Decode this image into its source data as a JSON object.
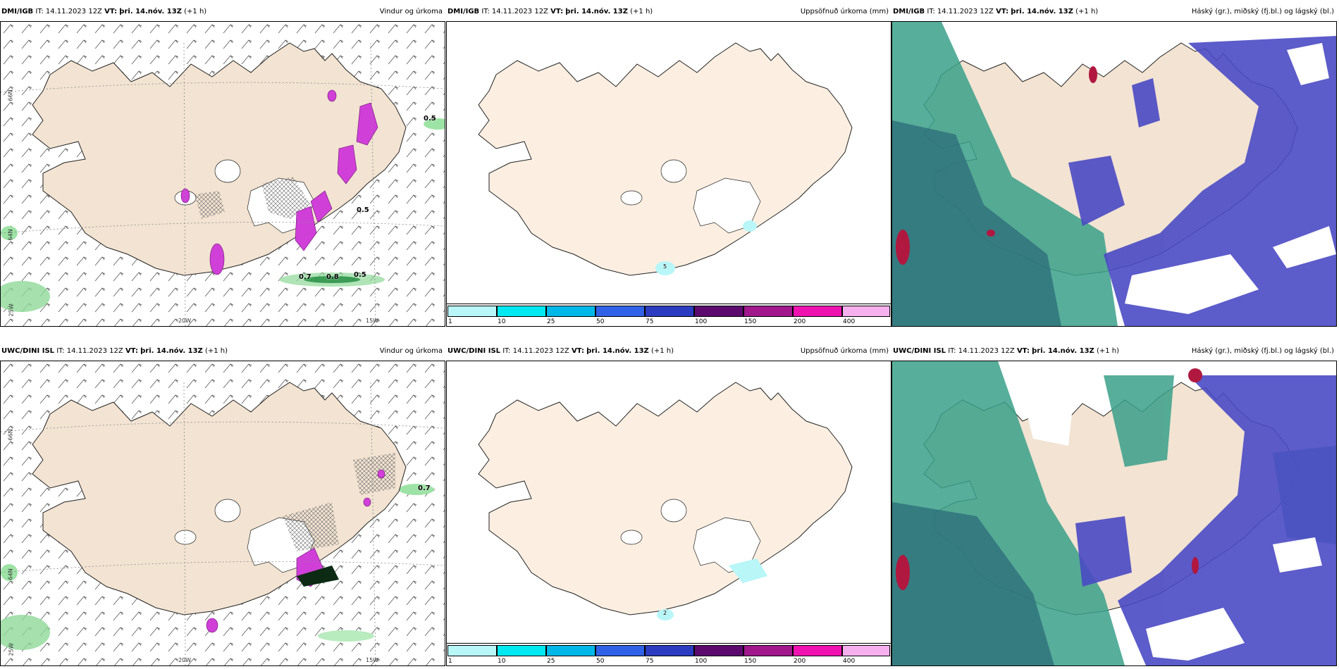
{
  "panels": [
    {
      "model": "DMI/IGB",
      "it_label": "IT:",
      "it": "14.11.2023 12Z",
      "vt_label": "VT:",
      "vt": "þri. 14.nóv. 13Z",
      "lead": "(+1 h)",
      "product": "Vindur og úrkoma"
    },
    {
      "model": "DMI/IGB",
      "it_label": "IT:",
      "it": "14.11.2023 12Z",
      "vt_label": "VT:",
      "vt": "þri. 14.nóv. 13Z",
      "lead": "(+1 h)",
      "product": "Uppsöfnuð úrkoma (mm)"
    },
    {
      "model": "DMI/IGB",
      "it_label": "IT:",
      "it": "14.11.2023 12Z",
      "vt_label": "VT:",
      "vt": "þri. 14.nóv. 13Z",
      "lead": "(+1 h)",
      "product": "Háský (gr.), miðský (fj.bl.) og lágský (bl.)"
    },
    {
      "model": "UWC/DINI ISL",
      "it_label": "IT:",
      "it": "14.11.2023 12Z",
      "vt_label": "VT:",
      "vt": "þri. 14.nóv. 13Z",
      "lead": "(+1 h)",
      "product": "Vindur og úrkoma"
    },
    {
      "model": "UWC/DINI ISL",
      "it_label": "IT:",
      "it": "14.11.2023 12Z",
      "vt_label": "VT:",
      "vt": "þri. 14.nóv. 13Z",
      "lead": "(+1 h)",
      "product": "Uppsöfnuð úrkoma (mm)"
    },
    {
      "model": "UWC/DINI ISL",
      "it_label": "IT:",
      "it": "14.11.2023 12Z",
      "vt_label": "VT:",
      "vt": "þri. 14.nóv. 13Z",
      "lead": "(+1 h)",
      "product": "Háský (gr.), miðský (fj.bl.) og lágský (bl.)"
    }
  ],
  "grid_labels": {
    "lat66": "66N",
    "lat64": "64N",
    "lon25": "25W",
    "lon20": "20W",
    "lon15": "15W"
  },
  "precip_labels_top": [
    "0.5",
    "0.5",
    "0.7",
    "0.8",
    "0.5"
  ],
  "precip_labels_bottom": [
    "0.7"
  ],
  "accum_labels": [
    "5",
    "2"
  ],
  "colorbar": {
    "ticks": [
      "1",
      "10",
      "25",
      "50",
      "75",
      "100",
      "150",
      "200",
      "400"
    ],
    "colors": [
      "#b8f6f8",
      "#00e8f0",
      "#00b8e8",
      "#2f62e6",
      "#2b3cc0",
      "#5c0a6e",
      "#a0188c",
      "#f012b0",
      "#f7b0ee"
    ]
  },
  "colors": {
    "land": "#f2e3d2",
    "land_accum": "#fcefe2",
    "high_cloud": "#3aa08a",
    "mid_cloud": "#2d6f7a",
    "low_cloud": "#4a4ac4",
    "precip": "#d040d8"
  }
}
